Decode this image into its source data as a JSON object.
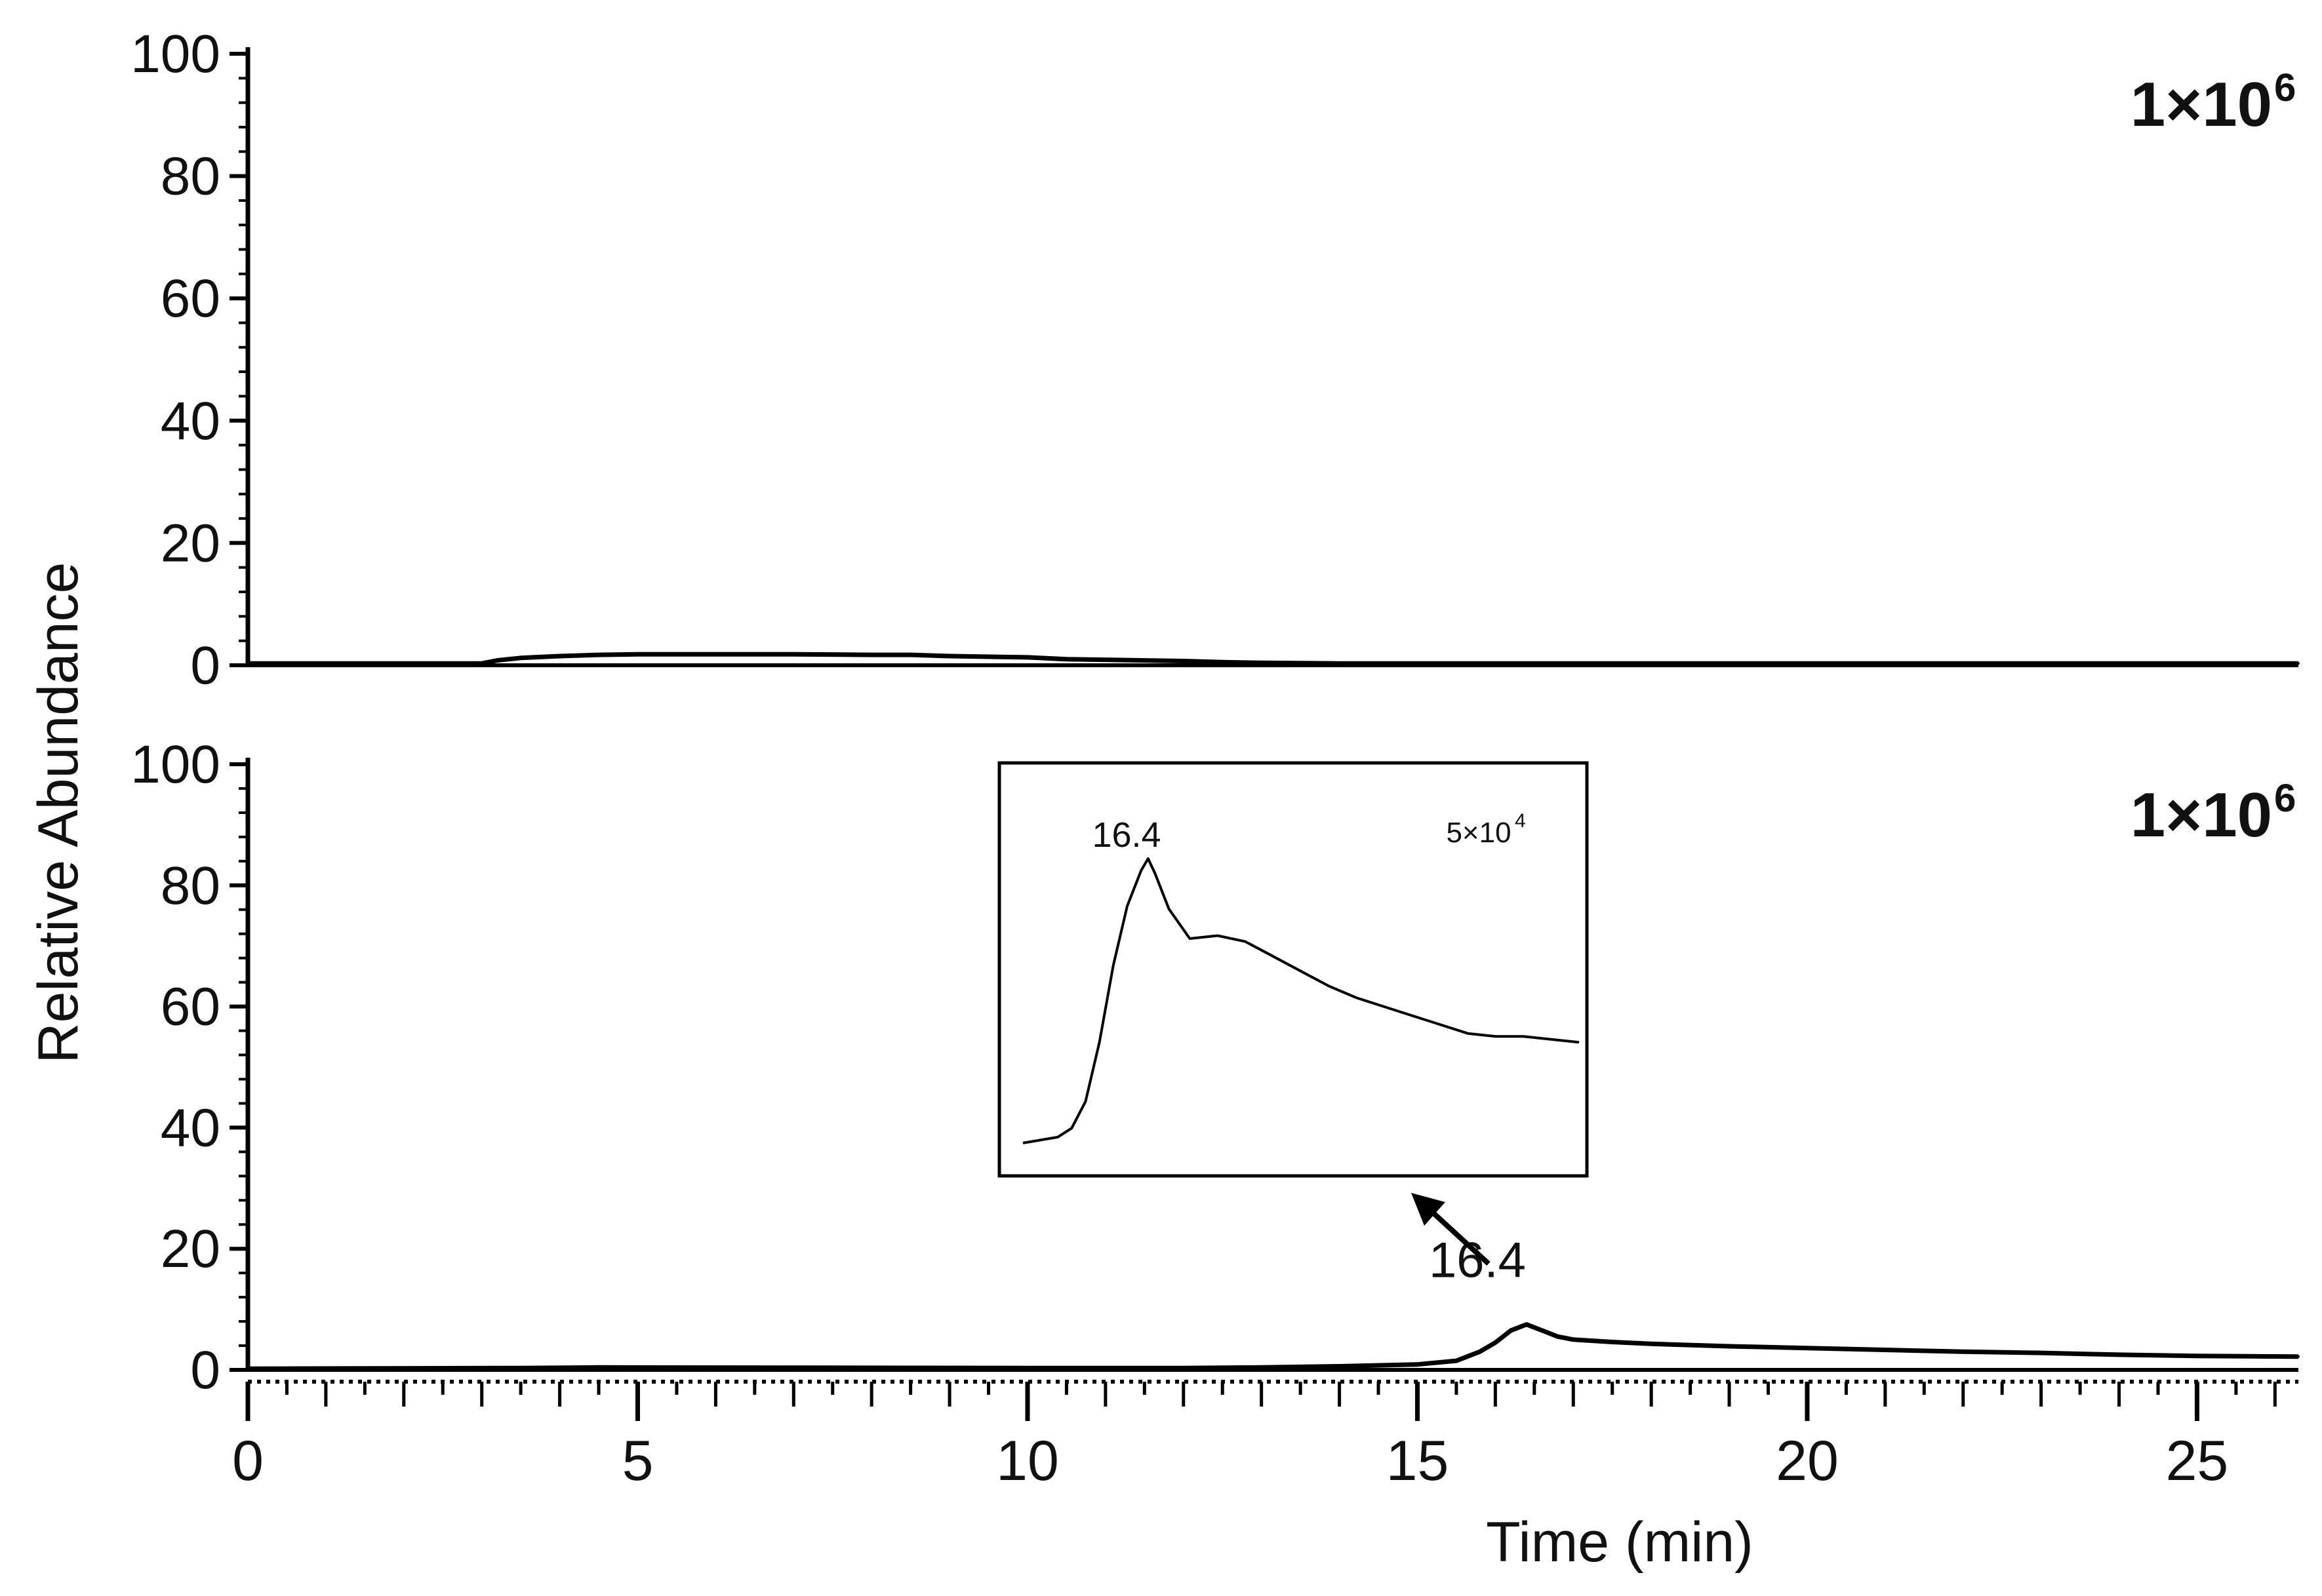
{
  "ylabel": "Relative Abundance",
  "xlabel": "Time (min)",
  "line_color": "#000000",
  "chart_data": [
    {
      "type": "line",
      "scale_label": {
        "mantissa": "1×10",
        "exponent": "6"
      },
      "x_ticks": [
        "0",
        "5",
        "10",
        "15",
        "20",
        "25"
      ],
      "y_ticks": [
        "100",
        "80",
        "60",
        "40",
        "20",
        "0"
      ],
      "xlim": [
        0,
        26.3
      ],
      "ylim": [
        0,
        100
      ],
      "series": [
        {
          "x": [
            0,
            3.0,
            3.2,
            3.5,
            4.0,
            4.5,
            5.0,
            6.0,
            7.0,
            8.0,
            8.5,
            9.0,
            10.0,
            10.5,
            11.0,
            12.0,
            12.5,
            13.0,
            14.0,
            15.0,
            16.0,
            17.0,
            18.0,
            19.0,
            20.0,
            22.0,
            24.0,
            26.3
          ],
          "y": [
            0.3,
            0.3,
            0.8,
            1.2,
            1.5,
            1.7,
            1.8,
            1.8,
            1.8,
            1.7,
            1.7,
            1.5,
            1.3,
            1.0,
            0.9,
            0.7,
            0.5,
            0.4,
            0.3,
            0.3,
            0.3,
            0.3,
            0.3,
            0.3,
            0.3,
            0.3,
            0.3,
            0.3
          ]
        }
      ]
    },
    {
      "type": "line",
      "scale_label": {
        "mantissa": "1×10",
        "exponent": "6"
      },
      "x_ticks": [
        "0",
        "5",
        "10",
        "15",
        "20",
        "25"
      ],
      "y_ticks": [
        "100",
        "80",
        "60",
        "40",
        "20",
        "0"
      ],
      "xlim": [
        0,
        26.3
      ],
      "ylim": [
        0,
        100
      ],
      "annotations": [
        {
          "text": "16.4",
          "x": 16.4,
          "y": 7.5
        }
      ],
      "series": [
        {
          "x": [
            0,
            3.5,
            4.5,
            10.0,
            12.0,
            13.0,
            14.0,
            15.0,
            15.5,
            15.8,
            16.0,
            16.2,
            16.4,
            16.6,
            16.8,
            17.0,
            17.5,
            18.0,
            19.0,
            20.0,
            21.0,
            22.0,
            23.0,
            24.0,
            25.0,
            26.3
          ],
          "y": [
            0.2,
            0.3,
            0.4,
            0.3,
            0.3,
            0.4,
            0.6,
            0.9,
            1.5,
            3.0,
            4.5,
            6.5,
            7.5,
            6.5,
            5.5,
            5.0,
            4.6,
            4.3,
            3.9,
            3.6,
            3.3,
            3.0,
            2.8,
            2.5,
            2.3,
            2.2
          ]
        }
      ],
      "inset": {
        "type": "line",
        "peak_label": "16.4",
        "scale_label": {
          "mantissa": "5×10",
          "exponent": "4"
        },
        "series": [
          {
            "x": [
              15.5,
              15.75,
              15.85,
              15.95,
              16.05,
              16.15,
              16.25,
              16.35,
              16.4,
              16.45,
              16.55,
              16.7,
              16.9,
              17.1,
              17.3,
              17.5,
              17.7,
              17.9,
              18.1,
              18.3,
              18.5,
              18.7,
              18.9,
              19.1,
              19.3,
              19.5
            ],
            "y": [
              4,
              6,
              9,
              18,
              38,
              64,
              84,
              96,
              100,
              95,
              83,
              73,
              74,
              72,
              67,
              62,
              57,
              53,
              50,
              47,
              44,
              41,
              40,
              40,
              39,
              38
            ]
          }
        ]
      }
    }
  ]
}
